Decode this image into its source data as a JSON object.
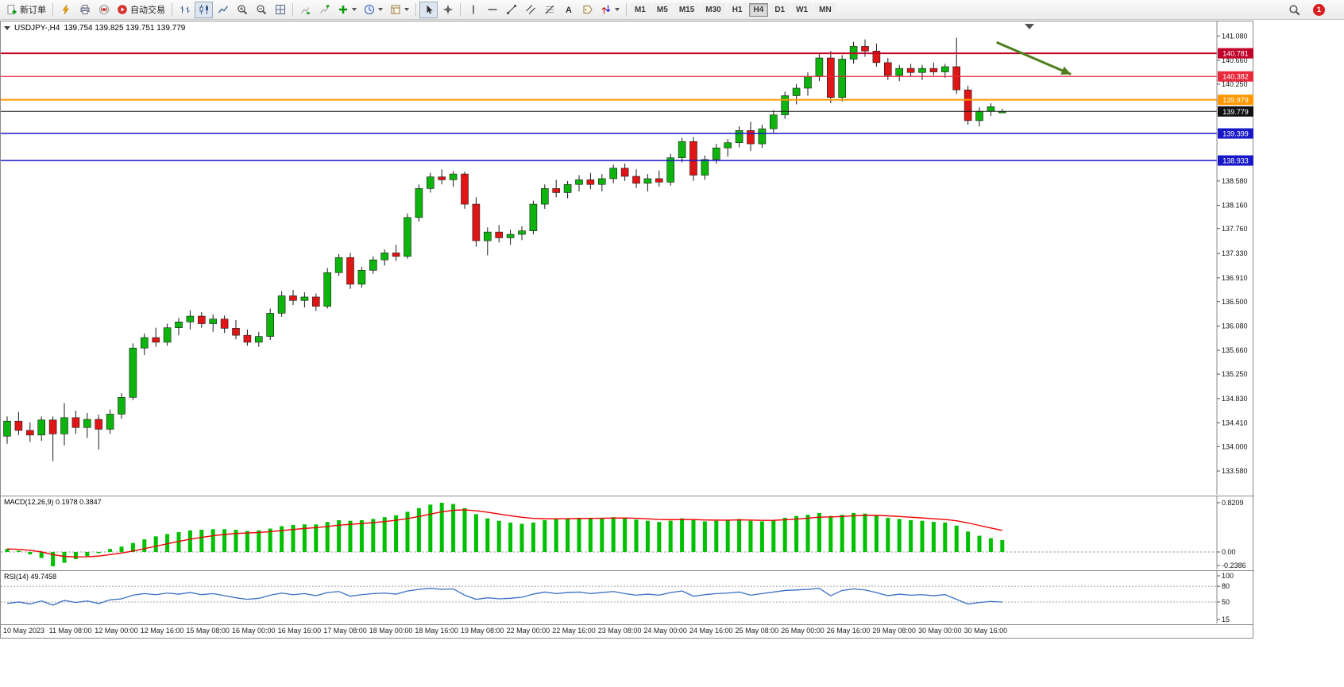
{
  "toolbar": {
    "new_order_label": "新订单",
    "algo_trading_label": "自动交易",
    "timeframes": [
      "M1",
      "M5",
      "M15",
      "M30",
      "H1",
      "H4",
      "D1",
      "W1",
      "MN"
    ],
    "active_timeframe": "H4",
    "notification_count": "1"
  },
  "chart": {
    "symbol_header": "USDJPY-,H4",
    "ohlc_header": "139.754 139.825 139.751 139.779",
    "colors": {
      "up": "#0db40d",
      "down": "#e01515",
      "outline": "#1a1a1a",
      "macd_hist": "#00c000",
      "macd_signal": "#f00000",
      "rsi_line": "#3a6fc4",
      "arrow": "#4e7f1e"
    }
  },
  "chart_data": {
    "type": "candlestick",
    "title": "USDJPY-,H4",
    "symbol": "USDJPY-",
    "timeframe": "H4",
    "last_ohlc": {
      "open": "139.754",
      "high": "139.825",
      "low": "139.751",
      "close": "139.779"
    },
    "y_axis": {
      "min": 133.17,
      "max": 141.33,
      "tick_labels": [
        "141.080",
        "140.660",
        "140.250",
        "138.580",
        "138.160",
        "137.760",
        "137.330",
        "136.910",
        "136.500",
        "136.080",
        "135.660",
        "135.250",
        "134.830",
        "134.410",
        "134.000",
        "133.580"
      ]
    },
    "x_tick_labels": [
      "10 May 2023",
      "11 May 08:00",
      "12 May 00:00",
      "12 May 16:00",
      "15 May 08:00",
      "16 May 00:00",
      "16 May 16:00",
      "17 May 08:00",
      "18 May 00:00",
      "18 May 16:00",
      "19 May 08:00",
      "22 May 00:00",
      "22 May 16:00",
      "23 May 08:00",
      "24 May 00:00",
      "24 May 16:00",
      "25 May 08:00",
      "26 May 00:00",
      "26 May 16:00",
      "29 May 08:00",
      "30 May 00:00",
      "30 May 16:00"
    ],
    "candles_ohlc": [
      [
        134.18,
        134.52,
        134.05,
        134.44
      ],
      [
        134.44,
        134.6,
        134.2,
        134.28
      ],
      [
        134.28,
        134.42,
        134.08,
        134.2
      ],
      [
        134.2,
        134.52,
        134.1,
        134.46
      ],
      [
        134.46,
        134.52,
        133.75,
        134.22
      ],
      [
        134.22,
        134.75,
        134.02,
        134.5
      ],
      [
        134.5,
        134.62,
        134.22,
        134.33
      ],
      [
        134.33,
        134.58,
        134.15,
        134.47
      ],
      [
        134.47,
        134.55,
        133.95,
        134.3
      ],
      [
        134.3,
        134.64,
        134.22,
        134.56
      ],
      [
        134.56,
        134.92,
        134.48,
        134.85
      ],
      [
        134.85,
        135.78,
        134.8,
        135.7
      ],
      [
        135.7,
        135.95,
        135.58,
        135.88
      ],
      [
        135.88,
        136.05,
        135.72,
        135.8
      ],
      [
        135.8,
        136.12,
        135.74,
        136.05
      ],
      [
        136.05,
        136.22,
        135.92,
        136.15
      ],
      [
        136.15,
        136.35,
        136.02,
        136.25
      ],
      [
        136.25,
        136.32,
        136.05,
        136.12
      ],
      [
        136.12,
        136.28,
        135.98,
        136.2
      ],
      [
        136.2,
        136.26,
        135.96,
        136.04
      ],
      [
        136.04,
        136.18,
        135.85,
        135.92
      ],
      [
        135.92,
        136.02,
        135.74,
        135.8
      ],
      [
        135.8,
        135.98,
        135.72,
        135.9
      ],
      [
        135.9,
        136.38,
        135.84,
        136.3
      ],
      [
        136.3,
        136.68,
        136.24,
        136.6
      ],
      [
        136.6,
        136.7,
        136.44,
        136.52
      ],
      [
        136.52,
        136.66,
        136.4,
        136.58
      ],
      [
        136.58,
        136.64,
        136.34,
        136.42
      ],
      [
        136.42,
        137.08,
        136.38,
        137.0
      ],
      [
        137.0,
        137.32,
        136.94,
        137.26
      ],
      [
        137.26,
        137.34,
        136.72,
        136.8
      ],
      [
        136.8,
        137.1,
        136.74,
        137.04
      ],
      [
        137.04,
        137.28,
        136.98,
        137.22
      ],
      [
        137.22,
        137.4,
        137.12,
        137.34
      ],
      [
        137.34,
        137.48,
        137.2,
        137.28
      ],
      [
        137.28,
        138.02,
        137.24,
        137.95
      ],
      [
        137.95,
        138.52,
        137.88,
        138.45
      ],
      [
        138.45,
        138.72,
        138.38,
        138.65
      ],
      [
        138.65,
        138.78,
        138.52,
        138.6
      ],
      [
        138.6,
        138.75,
        138.48,
        138.7
      ],
      [
        138.7,
        138.74,
        138.1,
        138.18
      ],
      [
        138.18,
        138.3,
        137.45,
        137.55
      ],
      [
        137.55,
        137.78,
        137.3,
        137.7
      ],
      [
        137.7,
        137.82,
        137.52,
        137.6
      ],
      [
        137.6,
        137.74,
        137.48,
        137.66
      ],
      [
        137.66,
        137.8,
        137.56,
        137.72
      ],
      [
        137.72,
        138.24,
        137.66,
        138.18
      ],
      [
        138.18,
        138.52,
        138.1,
        138.45
      ],
      [
        138.45,
        138.6,
        138.3,
        138.38
      ],
      [
        138.38,
        138.58,
        138.28,
        138.52
      ],
      [
        138.52,
        138.68,
        138.4,
        138.6
      ],
      [
        138.6,
        138.72,
        138.44,
        138.52
      ],
      [
        138.52,
        138.7,
        138.4,
        138.62
      ],
      [
        138.62,
        138.86,
        138.54,
        138.8
      ],
      [
        138.8,
        138.88,
        138.58,
        138.66
      ],
      [
        138.66,
        138.78,
        138.46,
        138.54
      ],
      [
        138.54,
        138.7,
        138.4,
        138.62
      ],
      [
        138.62,
        138.76,
        138.48,
        138.56
      ],
      [
        138.56,
        139.05,
        138.5,
        138.98
      ],
      [
        138.98,
        139.32,
        138.9,
        139.26
      ],
      [
        139.26,
        139.34,
        138.58,
        138.68
      ],
      [
        138.68,
        139.02,
        138.6,
        138.95
      ],
      [
        138.95,
        139.22,
        138.88,
        139.15
      ],
      [
        139.15,
        139.3,
        139.0,
        139.24
      ],
      [
        139.24,
        139.52,
        139.16,
        139.45
      ],
      [
        139.45,
        139.6,
        139.1,
        139.22
      ],
      [
        139.22,
        139.55,
        139.15,
        139.48
      ],
      [
        139.48,
        139.8,
        139.4,
        139.72
      ],
      [
        139.72,
        140.12,
        139.65,
        140.05
      ],
      [
        140.05,
        140.25,
        139.9,
        140.18
      ],
      [
        140.18,
        140.45,
        140.05,
        140.38
      ],
      [
        140.38,
        140.78,
        140.3,
        140.7
      ],
      [
        140.7,
        140.82,
        139.92,
        140.02
      ],
      [
        140.02,
        140.75,
        139.95,
        140.68
      ],
      [
        140.68,
        140.98,
        140.6,
        140.9
      ],
      [
        140.9,
        141.02,
        140.72,
        140.82
      ],
      [
        140.82,
        140.95,
        140.55,
        140.62
      ],
      [
        140.62,
        140.7,
        140.32,
        140.4
      ],
      [
        140.4,
        140.58,
        140.3,
        140.52
      ],
      [
        140.52,
        140.6,
        140.38,
        140.45
      ],
      [
        140.45,
        140.58,
        140.32,
        140.52
      ],
      [
        140.52,
        140.62,
        140.4,
        140.46
      ],
      [
        140.46,
        140.6,
        140.36,
        140.55
      ],
      [
        140.55,
        141.05,
        140.08,
        140.15
      ],
      [
        140.15,
        140.22,
        139.55,
        139.62
      ],
      [
        139.62,
        139.85,
        139.52,
        139.78
      ],
      [
        139.78,
        139.92,
        139.7,
        139.86
      ],
      [
        139.754,
        139.825,
        139.751,
        139.779
      ]
    ],
    "levels": [
      {
        "price": 140.781,
        "label": "140.781",
        "color": "#c00028",
        "width": 2,
        "is_current_price": false
      },
      {
        "price": 140.382,
        "label": "140.382",
        "color": "#e8283c",
        "width": 1.3,
        "is_current_price": false
      },
      {
        "price": 139.979,
        "label": "139.979",
        "color": "#ff9800",
        "width": 2,
        "is_current_price": false
      },
      {
        "price": 139.779,
        "label": "139.779",
        "color": "#111111",
        "width": 1,
        "is_current_price": true
      },
      {
        "price": 139.399,
        "label": "139.399",
        "color": "#1818c8",
        "width": 1.5,
        "is_current_price": false
      },
      {
        "price": 138.933,
        "label": "138.933",
        "color": "#1818c8",
        "width": 1.5,
        "is_current_price": false
      }
    ],
    "annotation_arrow": {
      "from_index": 86.5,
      "from_price": 140.97,
      "to_index": 93,
      "to_price": 140.42
    },
    "indicators": [
      {
        "name": "MACD",
        "label": "MACD(12,26,9)",
        "current_values": "0.1978 0.3847",
        "scale_labels": [
          "0.8209",
          "0.00",
          "-0.2386"
        ],
        "scale_max": 0.8209,
        "scale_min": -0.2386,
        "signal_period": 9,
        "histogram": [
          0.05,
          0.02,
          -0.04,
          -0.1,
          -0.2386,
          -0.18,
          -0.12,
          -0.07,
          -0.02,
          0.05,
          0.09,
          0.15,
          0.21,
          0.26,
          0.3,
          0.33,
          0.36,
          0.37,
          0.38,
          0.38,
          0.37,
          0.35,
          0.36,
          0.39,
          0.43,
          0.45,
          0.46,
          0.46,
          0.5,
          0.53,
          0.52,
          0.53,
          0.55,
          0.58,
          0.61,
          0.67,
          0.73,
          0.79,
          0.8209,
          0.8,
          0.73,
          0.63,
          0.56,
          0.52,
          0.49,
          0.47,
          0.49,
          0.53,
          0.55,
          0.56,
          0.57,
          0.57,
          0.57,
          0.58,
          0.57,
          0.54,
          0.52,
          0.5,
          0.52,
          0.56,
          0.53,
          0.51,
          0.52,
          0.53,
          0.55,
          0.52,
          0.51,
          0.53,
          0.57,
          0.6,
          0.62,
          0.65,
          0.6,
          0.62,
          0.65,
          0.64,
          0.61,
          0.57,
          0.55,
          0.53,
          0.52,
          0.5,
          0.49,
          0.44,
          0.34,
          0.27,
          0.23,
          0.1978
        ]
      },
      {
        "name": "RSI",
        "label": "RSI(14)",
        "current_value": "49.7458",
        "scale_labels": [
          "100",
          "80",
          "50",
          "15"
        ],
        "scale_max": 100,
        "scale_min": 15,
        "levels": [
          80,
          50
        ],
        "values": [
          47,
          50,
          46,
          52,
          44,
          53,
          49,
          52,
          47,
          54,
          56,
          63,
          66,
          64,
          67,
          65,
          68,
          64,
          66,
          62,
          58,
          55,
          57,
          63,
          67,
          64,
          66,
          62,
          68,
          70,
          61,
          64,
          66,
          67,
          65,
          71,
          74,
          76,
          74,
          75,
          63,
          55,
          58,
          56,
          57,
          59,
          65,
          69,
          66,
          68,
          69,
          66,
          68,
          70,
          66,
          63,
          65,
          63,
          68,
          71,
          61,
          64,
          66,
          67,
          69,
          63,
          66,
          69,
          72,
          73,
          74,
          76,
          62,
          72,
          75,
          73,
          68,
          62,
          65,
          63,
          64,
          62,
          64,
          55,
          46,
          49,
          51,
          49.7458
        ]
      }
    ]
  }
}
